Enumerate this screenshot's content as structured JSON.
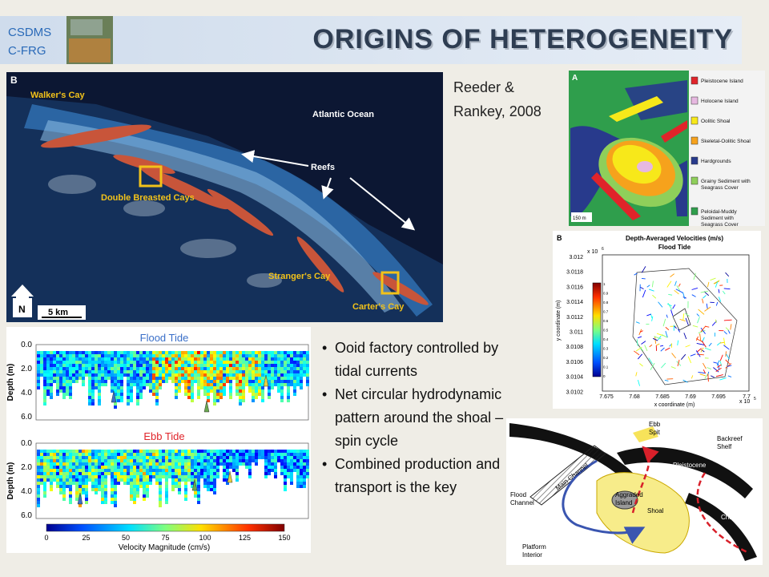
{
  "header": {
    "badge": [
      "CSDMS",
      "C-FRG"
    ],
    "title": "ORIGINS OF HETEROGENEITY"
  },
  "citation": [
    "Reeder &",
    "Rankey, 2008"
  ],
  "bullets": [
    "Ooid factory controlled by tidal currents",
    "Net circular hydrodynamic pattern around the shoal – spin cycle",
    "Combined production and transport is the key"
  ],
  "satellite": {
    "panel": "B",
    "labels": [
      "Walker's Cay",
      "Atlantic Ocean",
      "Reefs",
      "Double Breasted Cays",
      "Stranger's Cay",
      "Carter's Cay"
    ],
    "north": "N",
    "scale": "5 km"
  },
  "facies_map": {
    "panel": "A",
    "scale": "150 m",
    "legend": [
      {
        "lines": [
          "Pleistocene Island"
        ],
        "color": "#e0242a"
      },
      {
        "lines": [
          "Holocene Island"
        ],
        "color": "#e6b8e0"
      },
      {
        "lines": [
          "Oolitic Shoal"
        ],
        "color": "#f7e81a"
      },
      {
        "lines": [
          "Skeletal-Oolitic Shoal"
        ],
        "color": "#f6a21c"
      },
      {
        "lines": [
          "Hardgrounds"
        ],
        "color": "#283a8c"
      },
      {
        "lines": [
          "Grainy Sediment with",
          "Seagrass Cover"
        ],
        "color": "#8fcf5a"
      },
      {
        "lines": [
          "Peloidal-Muddy",
          "Sediment with",
          "Seagrass Cover"
        ],
        "color": "#2f9e4c"
      }
    ]
  },
  "velocity_plot": {
    "panel": "B",
    "title": "Depth-Averaged Velocities (m/s)",
    "subtitle": "Flood Tide",
    "ylabel": "y coordinate (m)",
    "xlabel": "x coordinate (m)",
    "yexp": [
      "x 10",
      "6"
    ],
    "xexp": [
      "x 10",
      "5"
    ],
    "yticks": [
      "3.012",
      "3.0118",
      "3.0116",
      "3.0114",
      "3.0112",
      "3.011",
      "3.0108",
      "3.0106",
      "3.0104",
      "3.0102"
    ],
    "xticks": [
      "7.675",
      "7.68",
      "7.685",
      "7.69",
      "7.695",
      "7.7"
    ],
    "colorbar_ticks": [
      "1",
      "0.9",
      "0.8",
      "0.7",
      "0.6",
      "0.5",
      "0.4",
      "0.3",
      "0.2",
      "0.1",
      "0"
    ]
  },
  "transect": {
    "panels": [
      "Flood Tide",
      "Ebb Tide"
    ],
    "depth_ticks": [
      "0.0",
      "2.0",
      "4.0",
      "6.0"
    ],
    "ylabel": "Depth (m)",
    "colorbar_ticks": [
      "0",
      "25",
      "50",
      "75",
      "100",
      "125",
      "150"
    ],
    "colorbar_label": "Velocity Magnitude (cm/s)"
  },
  "diagram": {
    "labels": [
      [
        "Main Channel"
      ],
      [
        "Ebb",
        "Spit"
      ],
      [
        "Backreef",
        "Shelf"
      ],
      [
        "Pleistocene",
        "Islands"
      ],
      [
        "Ebb",
        "Channel"
      ],
      [
        "Flood",
        "Channel"
      ],
      [
        "Aggraded",
        "Island"
      ],
      [
        "Shoal"
      ],
      [
        "Platform",
        "Interior"
      ]
    ]
  }
}
